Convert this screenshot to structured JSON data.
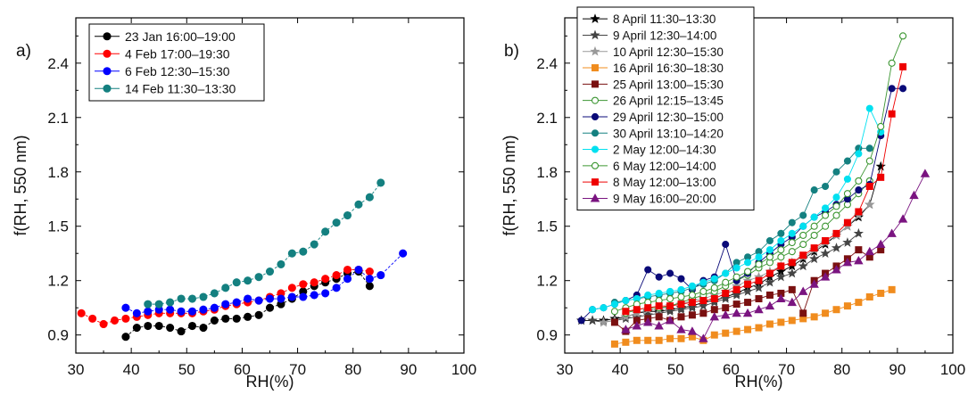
{
  "chart_data": [
    {
      "type": "scatter",
      "panel_label": "a)",
      "xlabel": "RH(%)",
      "ylabel": "f(RH, 550 nm)",
      "xlim": [
        30,
        100
      ],
      "ylim": [
        0.8,
        2.65
      ],
      "xticks": [
        30,
        40,
        50,
        60,
        70,
        80,
        90,
        100
      ],
      "yticks": [
        0.9,
        1.2,
        1.5,
        1.8,
        2.1,
        2.4
      ],
      "xtick_labels": [
        "30",
        "40",
        "50",
        "60",
        "70",
        "80",
        "90",
        "100"
      ],
      "ytick_labels": [
        "0.9",
        "1.2",
        "1.5",
        "1.8",
        "2.1",
        "2.4"
      ],
      "grid": false,
      "legend_position": "top-left",
      "series": [
        {
          "name": "23 Jan 16:00–19:00",
          "color": "#000000",
          "marker": "circle",
          "filled": true,
          "x": [
            39,
            41,
            43,
            45,
            47,
            49,
            51,
            53,
            55,
            57,
            59,
            61,
            63,
            65,
            67,
            69,
            71,
            73,
            75,
            77,
            79,
            81,
            83
          ],
          "y": [
            0.89,
            0.94,
            0.95,
            0.95,
            0.94,
            0.92,
            0.95,
            0.94,
            0.98,
            0.99,
            0.99,
            1.0,
            1.01,
            1.05,
            1.07,
            1.1,
            1.14,
            1.17,
            1.19,
            1.21,
            1.24,
            1.25,
            1.17
          ]
        },
        {
          "name": "4 Feb 17:00–19:30",
          "color": "#ff0000",
          "marker": "circle",
          "filled": true,
          "x": [
            31,
            33,
            35,
            37,
            39,
            41,
            43,
            45,
            47,
            49,
            51,
            53,
            55,
            57,
            59,
            61,
            63,
            65,
            67,
            69,
            71,
            73,
            75,
            77,
            79,
            81,
            83
          ],
          "y": [
            1.02,
            0.99,
            0.96,
            0.98,
            0.99,
            1.0,
            1.01,
            1.02,
            1.02,
            1.02,
            1.02,
            1.03,
            1.04,
            1.06,
            1.07,
            1.08,
            1.09,
            1.11,
            1.13,
            1.16,
            1.18,
            1.19,
            1.21,
            1.23,
            1.26,
            1.26,
            1.25
          ]
        },
        {
          "name": "6 Feb 12:30–15:30",
          "color": "#0000ff",
          "marker": "circle",
          "filled": true,
          "x": [
            39,
            41,
            43,
            45,
            47,
            49,
            51,
            53,
            55,
            57,
            59,
            61,
            63,
            65,
            67,
            69,
            71,
            73,
            75,
            77,
            79,
            81,
            83,
            85,
            89
          ],
          "y": [
            1.05,
            1.02,
            1.03,
            1.04,
            1.04,
            1.03,
            1.03,
            1.04,
            1.05,
            1.07,
            1.08,
            1.1,
            1.09,
            1.1,
            1.1,
            1.11,
            1.11,
            1.12,
            1.13,
            1.16,
            1.21,
            1.26,
            1.21,
            1.23,
            1.35
          ]
        },
        {
          "name": "14 Feb 11:30–13:30",
          "color": "#148080",
          "marker": "circle",
          "filled": true,
          "x": [
            43,
            45,
            47,
            49,
            51,
            53,
            55,
            57,
            59,
            61,
            63,
            65,
            67,
            69,
            71,
            73,
            75,
            77,
            79,
            81,
            83,
            85
          ],
          "y": [
            1.07,
            1.07,
            1.08,
            1.1,
            1.1,
            1.11,
            1.13,
            1.16,
            1.19,
            1.2,
            1.22,
            1.25,
            1.29,
            1.35,
            1.36,
            1.4,
            1.47,
            1.52,
            1.56,
            1.62,
            1.66,
            1.74
          ]
        }
      ]
    },
    {
      "type": "scatter",
      "panel_label": "b)",
      "xlabel": "RH(%)",
      "ylabel": "f(RH, 550 nm)",
      "xlim": [
        30,
        100
      ],
      "ylim": [
        0.8,
        2.65
      ],
      "xticks": [
        30,
        40,
        50,
        60,
        70,
        80,
        90,
        100
      ],
      "yticks": [
        0.9,
        1.2,
        1.5,
        1.8,
        2.1,
        2.4
      ],
      "xtick_labels": [
        "30",
        "40",
        "50",
        "60",
        "70",
        "80",
        "90",
        "100"
      ],
      "ytick_labels": [
        "0.9",
        "1.2",
        "1.5",
        "1.8",
        "2.1",
        "2.4"
      ],
      "grid": false,
      "legend_position": "top-left",
      "series": [
        {
          "name": "8 April 11:30–13:30",
          "color": "#000000",
          "marker": "star",
          "filled": true,
          "x": [
            33,
            35,
            37,
            39,
            41,
            43,
            45,
            47,
            49,
            51,
            53,
            55,
            57,
            59,
            61,
            63,
            65,
            67,
            69,
            71,
            73,
            75,
            77,
            79,
            81,
            83,
            85,
            87
          ],
          "y": [
            0.98,
            0.98,
            0.98,
            0.99,
            1.0,
            1.02,
            1.03,
            1.03,
            1.04,
            1.05,
            1.06,
            1.08,
            1.09,
            1.11,
            1.13,
            1.16,
            1.18,
            1.22,
            1.25,
            1.28,
            1.32,
            1.36,
            1.4,
            1.45,
            1.5,
            1.55,
            1.62,
            1.83
          ]
        },
        {
          "name": "9 April 12:30–14:00",
          "color": "#444444",
          "marker": "star",
          "filled": true,
          "x": [
            35,
            37,
            39,
            41,
            43,
            45,
            47,
            49,
            51,
            53,
            55,
            57,
            59,
            61,
            63,
            65,
            67,
            69,
            71,
            73,
            75,
            77,
            79,
            81,
            83
          ],
          "y": [
            0.98,
            0.97,
            0.98,
            0.99,
            1.0,
            1.01,
            1.02,
            1.03,
            1.04,
            1.05,
            1.06,
            1.08,
            1.1,
            1.12,
            1.14,
            1.16,
            1.19,
            1.22,
            1.24,
            1.28,
            1.32,
            1.35,
            1.38,
            1.41,
            1.46
          ]
        },
        {
          "name": "10 April 12:30–15:30",
          "color": "#999999",
          "marker": "star",
          "filled": true,
          "x": [
            37,
            39,
            41,
            43,
            45,
            47,
            49,
            51,
            53,
            55,
            57,
            59,
            61,
            63,
            65,
            67,
            69,
            71,
            73,
            75,
            77,
            79,
            81,
            83,
            85
          ],
          "y": [
            0.97,
            0.98,
            1.0,
            1.02,
            1.04,
            1.04,
            1.06,
            1.07,
            1.09,
            1.1,
            1.12,
            1.14,
            1.17,
            1.2,
            1.22,
            1.25,
            1.28,
            1.3,
            1.33,
            1.37,
            1.41,
            1.45,
            1.5,
            1.56,
            1.62
          ]
        },
        {
          "name": "16 April 16:30–18:30",
          "color": "#f08c1e",
          "marker": "square",
          "filled": true,
          "x": [
            39,
            41,
            43,
            45,
            47,
            49,
            51,
            53,
            55,
            57,
            59,
            61,
            63,
            65,
            67,
            69,
            71,
            73,
            75,
            77,
            79,
            81,
            83,
            85,
            87,
            89
          ],
          "y": [
            0.85,
            0.86,
            0.87,
            0.87,
            0.87,
            0.88,
            0.88,
            0.89,
            0.87,
            0.9,
            0.91,
            0.92,
            0.93,
            0.94,
            0.96,
            0.97,
            0.98,
            0.99,
            1.0,
            1.02,
            1.04,
            1.06,
            1.08,
            1.11,
            1.13,
            1.15
          ]
        },
        {
          "name": "25 April 13:00–15:30",
          "color": "#7a1010",
          "marker": "square",
          "filled": true,
          "x": [
            39,
            41,
            43,
            45,
            47,
            49,
            51,
            53,
            55,
            57,
            59,
            61,
            63,
            65,
            67,
            69,
            71,
            73,
            75,
            77,
            79,
            81,
            83,
            85,
            87
          ],
          "y": [
            0.97,
            0.92,
            0.98,
            0.99,
            1.0,
            0.98,
            1.0,
            1.01,
            1.02,
            1.04,
            1.05,
            1.07,
            1.08,
            1.1,
            1.12,
            1.13,
            1.15,
            1.02,
            1.2,
            1.24,
            1.28,
            1.32,
            1.37,
            1.33,
            1.37
          ]
        },
        {
          "name": "26 April 12:15–13:45",
          "color": "#3c9632",
          "marker": "circle",
          "filled": false,
          "x": [
            41,
            43,
            45,
            47,
            49,
            51,
            53,
            55,
            57,
            59,
            61,
            63,
            65,
            67,
            69,
            71,
            73,
            75,
            77,
            79,
            81,
            83,
            85
          ],
          "y": [
            1.02,
            1.04,
            1.05,
            1.05,
            1.06,
            1.08,
            1.1,
            1.12,
            1.14,
            1.17,
            1.2,
            1.23,
            1.27,
            1.3,
            1.33,
            1.36,
            1.4,
            1.45,
            1.5,
            1.56,
            1.62,
            1.68,
            1.75
          ]
        },
        {
          "name": "29 April 12:30–15:00",
          "color": "#0a0a78",
          "marker": "circle",
          "filled": true,
          "x": [
            33,
            35,
            37,
            39,
            41,
            43,
            45,
            47,
            49,
            51,
            53,
            55,
            57,
            59,
            61,
            63,
            65,
            67,
            69,
            71,
            73,
            75,
            77,
            79,
            81,
            83,
            85,
            87,
            89,
            91
          ],
          "y": [
            0.98,
            1.04,
            1.05,
            1.07,
            1.09,
            1.12,
            1.26,
            1.22,
            1.24,
            1.21,
            1.15,
            1.2,
            1.22,
            1.4,
            1.2,
            1.24,
            1.3,
            1.35,
            1.4,
            1.44,
            1.5,
            1.55,
            1.58,
            1.62,
            1.65,
            1.7,
            1.73,
            2.0,
            2.26,
            2.26
          ]
        },
        {
          "name": "30 April 13:10–14:20",
          "color": "#148080",
          "marker": "circle",
          "filled": true,
          "x": [
            39,
            41,
            43,
            45,
            47,
            49,
            51,
            53,
            55,
            57,
            59,
            61,
            63,
            65,
            67,
            69,
            71,
            73,
            75,
            77,
            79,
            81,
            83,
            85
          ],
          "y": [
            1.08,
            1.09,
            1.1,
            1.11,
            1.12,
            1.13,
            1.14,
            1.16,
            1.18,
            1.2,
            1.24,
            1.3,
            1.33,
            1.36,
            1.42,
            1.46,
            1.52,
            1.56,
            1.7,
            1.72,
            1.8,
            1.86,
            1.93,
            1.93
          ]
        },
        {
          "name": "2 May 12:00–14:30",
          "color": "#00e0f0",
          "marker": "circle",
          "filled": true,
          "x": [
            35,
            37,
            39,
            41,
            43,
            45,
            47,
            49,
            51,
            53,
            55,
            57,
            59,
            61,
            63,
            65,
            67,
            69,
            71,
            73,
            75,
            77,
            79,
            81,
            83,
            85,
            87
          ],
          "y": [
            1.04,
            1.05,
            1.07,
            1.09,
            1.1,
            1.12,
            1.13,
            1.14,
            1.15,
            1.17,
            1.19,
            1.21,
            1.24,
            1.27,
            1.3,
            1.33,
            1.37,
            1.42,
            1.46,
            1.5,
            1.55,
            1.6,
            1.66,
            1.76,
            1.9,
            2.15,
            2.02
          ]
        },
        {
          "name": "6 May 12:00–14:00",
          "color": "#3c9632",
          "marker": "circle",
          "filled": false,
          "x": [
            39,
            41,
            43,
            45,
            47,
            49,
            51,
            53,
            55,
            57,
            59,
            61,
            63,
            65,
            67,
            69,
            71,
            73,
            75,
            77,
            79,
            81,
            83,
            85,
            87,
            89,
            91
          ],
          "y": [
            1.03,
            1.05,
            1.07,
            1.08,
            1.09,
            1.1,
            1.11,
            1.12,
            1.14,
            1.16,
            1.19,
            1.22,
            1.25,
            1.29,
            1.33,
            1.37,
            1.41,
            1.45,
            1.5,
            1.56,
            1.61,
            1.68,
            1.75,
            1.86,
            2.05,
            2.4,
            2.55
          ]
        },
        {
          "name": "8 May 12:00–13:00",
          "color": "#ee0000",
          "marker": "square",
          "filled": true,
          "x": [
            41,
            43,
            45,
            47,
            49,
            51,
            53,
            55,
            57,
            59,
            61,
            63,
            65,
            67,
            69,
            71,
            73,
            75,
            77,
            79,
            81,
            83,
            85,
            87,
            89,
            91
          ],
          "y": [
            1.03,
            1.04,
            1.05,
            1.06,
            1.06,
            1.07,
            1.08,
            1.09,
            1.1,
            1.13,
            1.15,
            1.18,
            1.2,
            1.24,
            1.28,
            1.3,
            1.34,
            1.38,
            1.42,
            1.46,
            1.52,
            1.58,
            1.72,
            1.77,
            2.12,
            2.38
          ]
        },
        {
          "name": "9 May 16:00–20:00",
          "color": "#7a1480",
          "marker": "triangle",
          "filled": true,
          "x": [
            41,
            43,
            45,
            47,
            49,
            51,
            53,
            55,
            57,
            59,
            61,
            63,
            65,
            67,
            69,
            71,
            73,
            75,
            77,
            79,
            81,
            83,
            85,
            87,
            89,
            91,
            93,
            95
          ],
          "y": [
            0.93,
            0.95,
            0.97,
            0.95,
            0.98,
            0.93,
            0.92,
            0.88,
            1.0,
            1.01,
            1.02,
            1.02,
            1.04,
            1.06,
            1.1,
            1.08,
            1.14,
            1.18,
            1.22,
            1.26,
            1.3,
            1.31,
            1.36,
            1.4,
            1.46,
            1.54,
            1.67,
            1.79
          ]
        }
      ]
    }
  ]
}
